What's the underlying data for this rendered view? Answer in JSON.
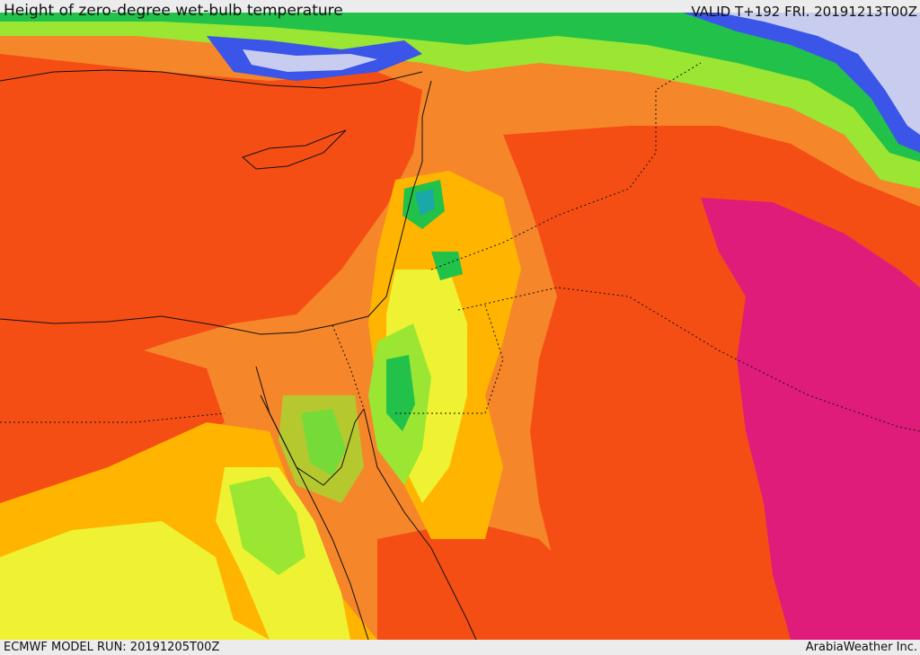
{
  "header": {
    "title": "Height of zero-degree wet-bulb temperature",
    "valid_time": "VALID T+192 FRI. 20191213T00Z"
  },
  "footer": {
    "model_run": "ECMWF MODEL RUN: 20191205T00Z",
    "credit": "ArabiaWeather Inc."
  },
  "map": {
    "region": "Eastern Mediterranean and Middle East",
    "field": "height of zero-degree wet-bulb temperature",
    "colors": {
      "pale_lavender": "#c8cdf0",
      "blue": "#3a55e8",
      "teal": "#1aa8a8",
      "green": "#22c24a",
      "lime": "#9ae632",
      "yellow": "#eef232",
      "amber": "#ffb400",
      "orange": "#f5862a",
      "red_orange": "#f54e14",
      "magenta": "#e01c7a",
      "coastline": "#111111"
    }
  }
}
